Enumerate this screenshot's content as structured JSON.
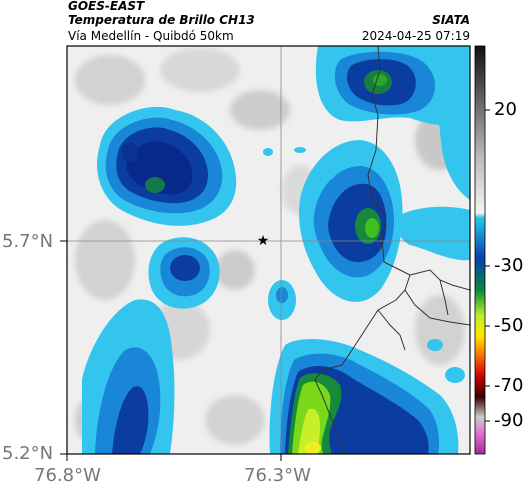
{
  "header": {
    "satellite": "GOES-EAST",
    "title": "Temperatura de Brillo CH13",
    "subtitle": "Vía Medellín - Quibdó 50km",
    "organization": "SIATA",
    "datetime": "2024-04-25 07:19"
  },
  "axes": {
    "lat_labels": [
      "5.7°N",
      "5.2°N"
    ],
    "lon_labels": [
      "76.8°W",
      "76.3°W"
    ]
  },
  "colorbar": {
    "tick_labels": [
      "20",
      "-30",
      "-50",
      "-70",
      "-90"
    ]
  },
  "marker": {
    "name": "star-marker"
  }
}
